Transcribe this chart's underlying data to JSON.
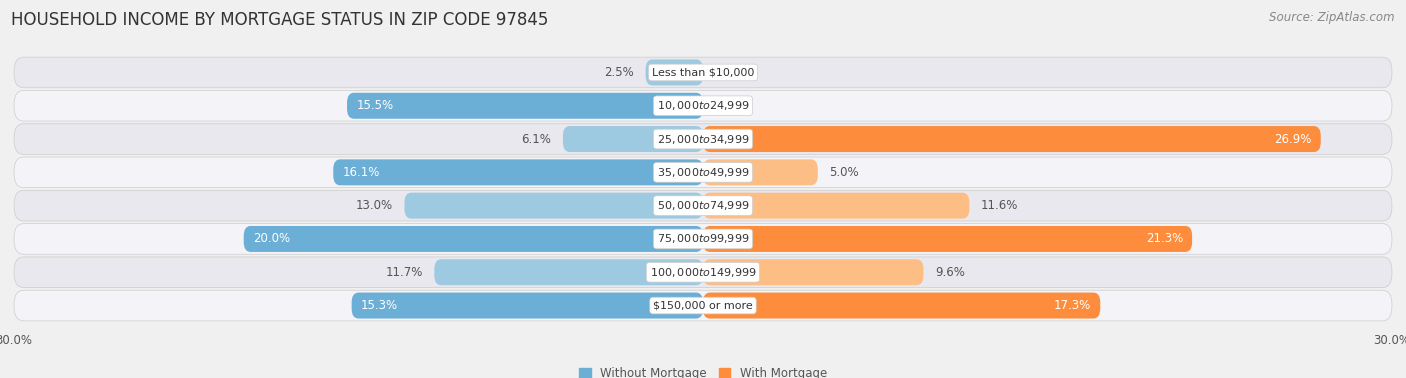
{
  "title": "HOUSEHOLD INCOME BY MORTGAGE STATUS IN ZIP CODE 97845",
  "source": "Source: ZipAtlas.com",
  "categories": [
    "Less than $10,000",
    "$10,000 to $24,999",
    "$25,000 to $34,999",
    "$35,000 to $49,999",
    "$50,000 to $74,999",
    "$75,000 to $99,999",
    "$100,000 to $149,999",
    "$150,000 or more"
  ],
  "without_mortgage": [
    2.5,
    15.5,
    6.1,
    16.1,
    13.0,
    20.0,
    11.7,
    15.3
  ],
  "with_mortgage": [
    0.0,
    0.0,
    26.9,
    5.0,
    11.6,
    21.3,
    9.6,
    17.3
  ],
  "blue_color": "#6baed6",
  "blue_light_color": "#9ecae1",
  "orange_color": "#fd8d3c",
  "orange_light_color": "#fdbe85",
  "row_colors": [
    "#f0f0f0",
    "#ffffff"
  ],
  "bg_color": "#f0f0f0",
  "xlim": 30.0,
  "bar_height": 0.78,
  "title_fontsize": 12,
  "label_fontsize": 8.5,
  "category_fontsize": 8,
  "source_fontsize": 8.5,
  "value_threshold_white_label": 14.0
}
